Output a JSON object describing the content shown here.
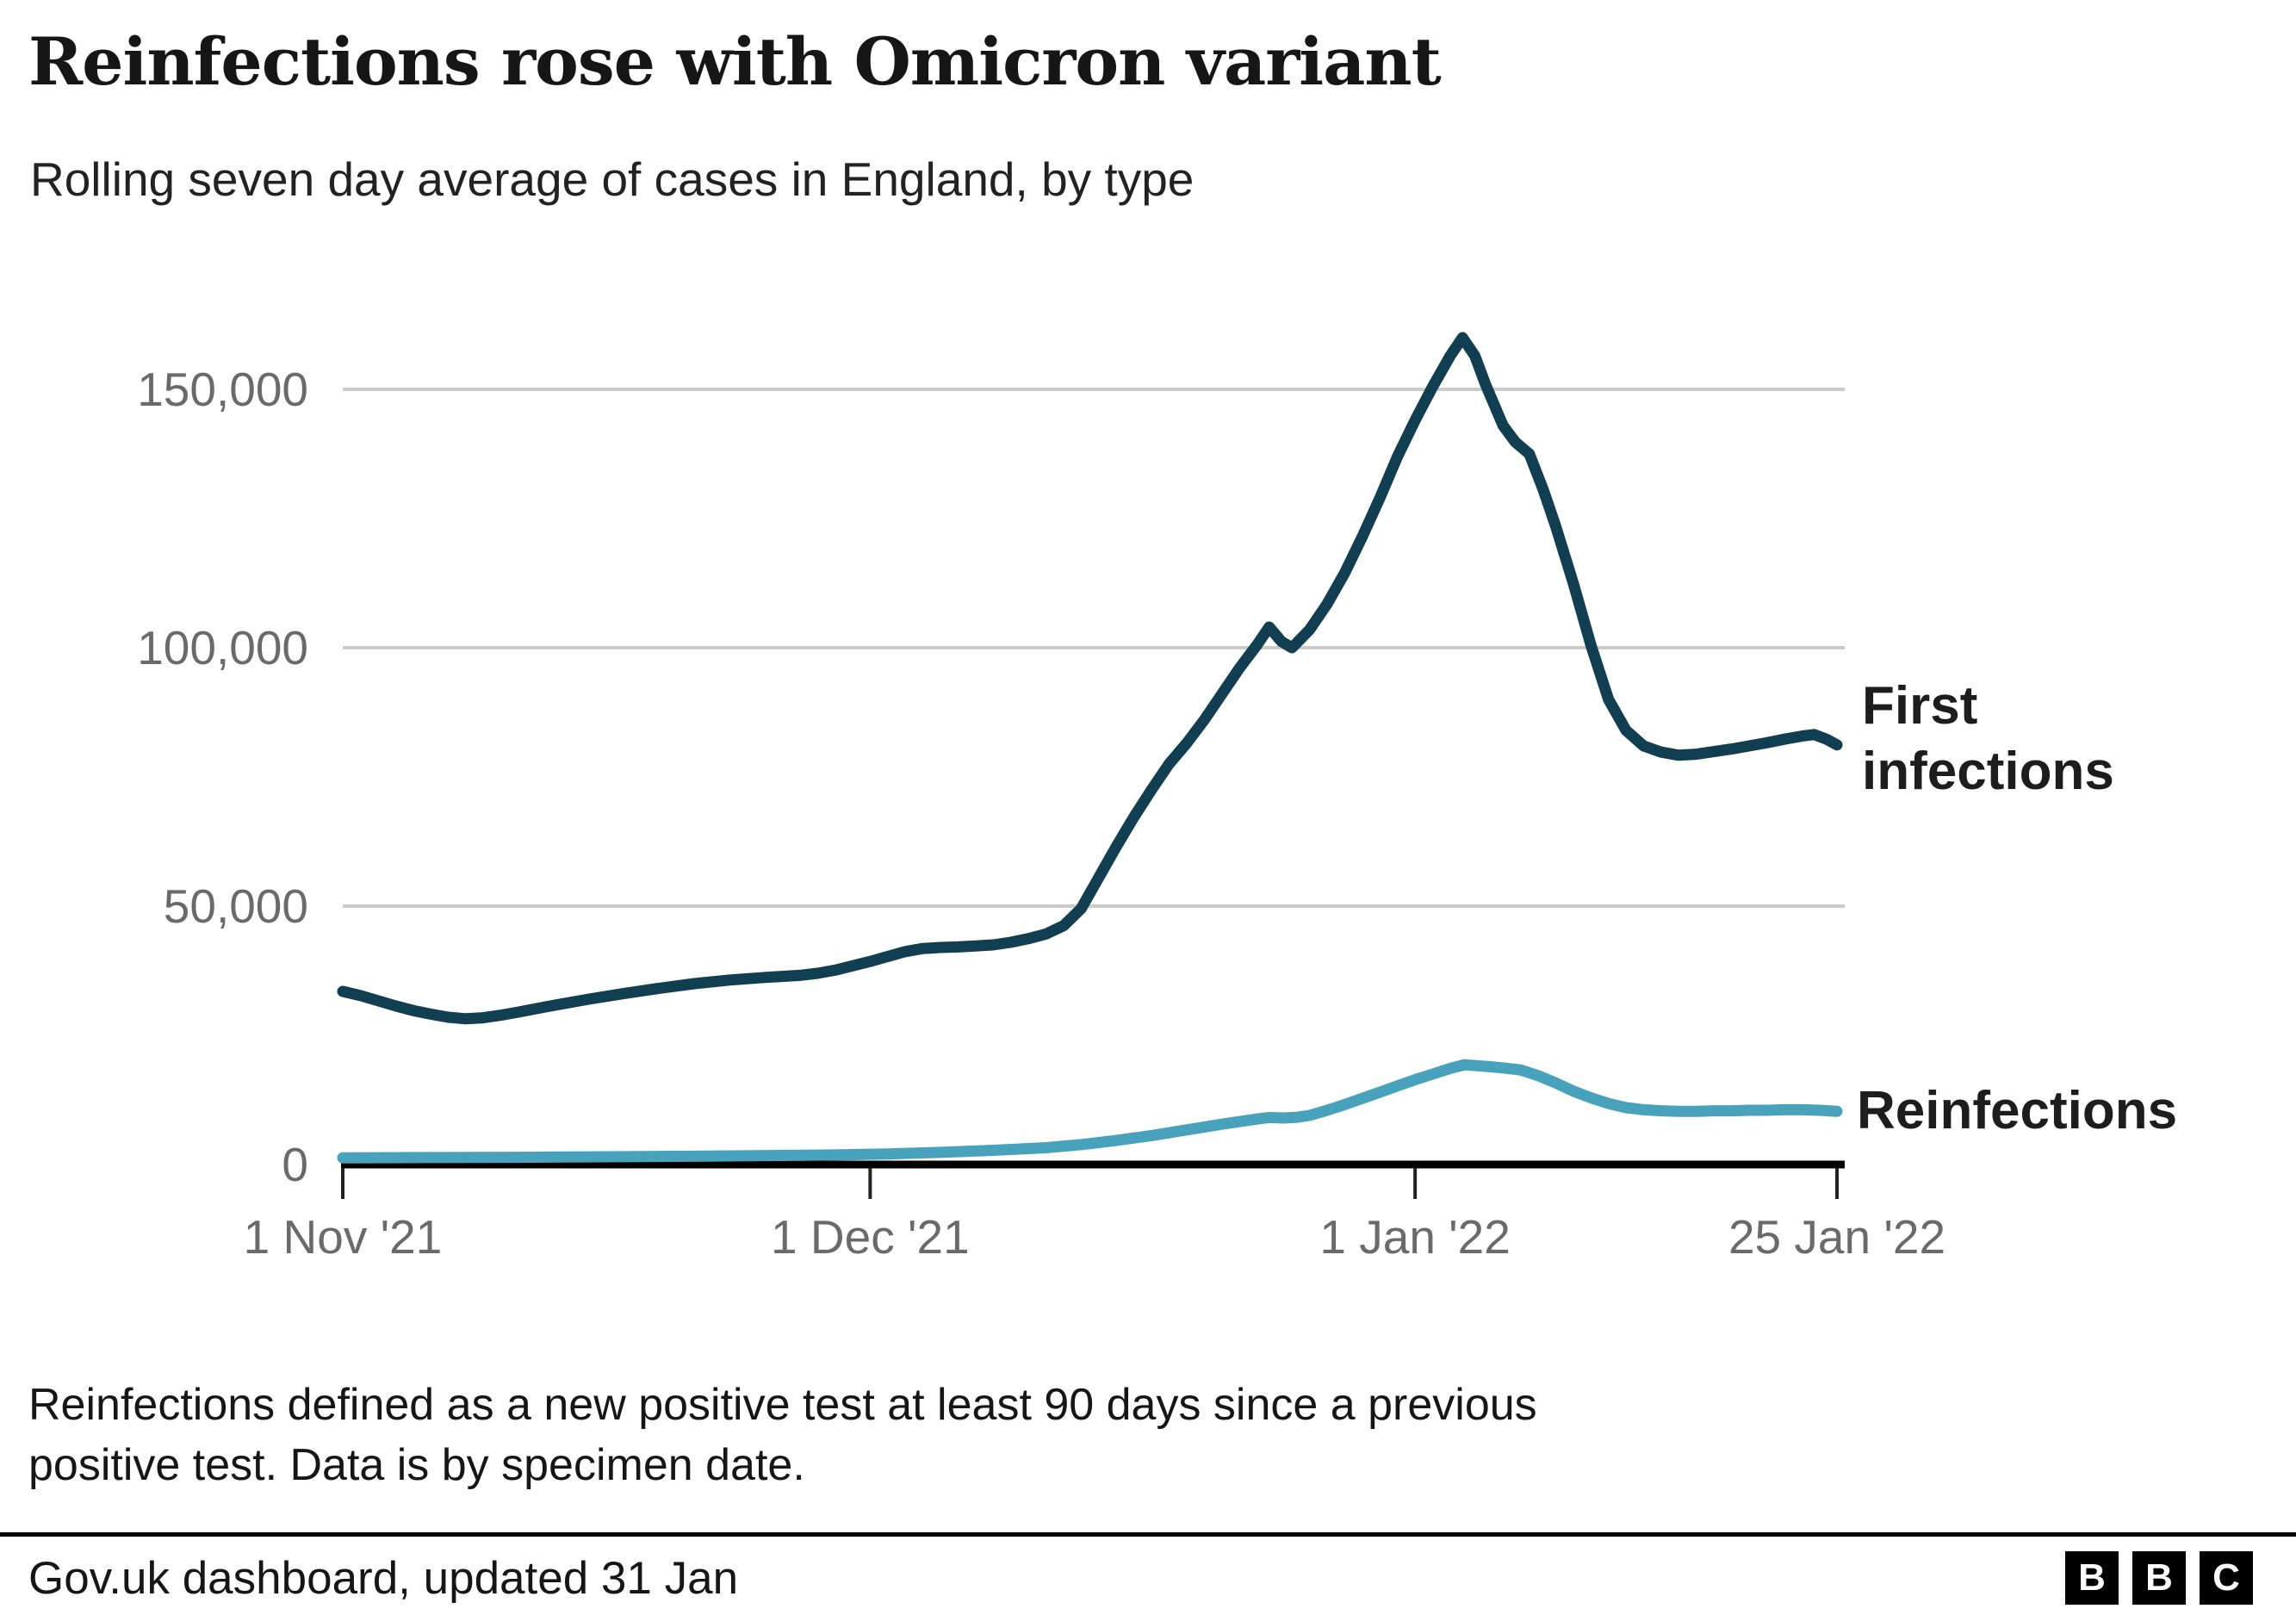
{
  "header": {
    "title": "Reinfections rose with Omicron variant",
    "subtitle": "Rolling seven day average of cases in England, by type"
  },
  "chart_data": {
    "type": "line",
    "title": "Reinfections rose with Omicron variant",
    "subtitle": "Rolling seven day average of cases in England, by type",
    "grid": true,
    "legend_position": "right-edge-labels",
    "x_axis": {
      "kind": "date",
      "start_date": "1 Nov '21",
      "end_date": "25 Jan '22",
      "range_days": [
        0,
        85
      ],
      "ticks": [
        {
          "label": "1 Nov '21",
          "day": 0
        },
        {
          "label": "1 Dec '21",
          "day": 30
        },
        {
          "label": "1 Jan '22",
          "day": 61
        },
        {
          "label": "25 Jan '22",
          "day": 85
        }
      ]
    },
    "y_axis": {
      "range": [
        0,
        160000
      ],
      "ticks": [
        {
          "label": "150,000",
          "value": 150000
        },
        {
          "label": "100,000",
          "value": 100000
        },
        {
          "label": "50,000",
          "value": 50000
        },
        {
          "label": "0",
          "value": 0
        }
      ]
    },
    "series": [
      {
        "name": "Reinfections",
        "label_lines": [
          "Reinfections"
        ],
        "color": "#49a2bb",
        "points": [
          [
            0,
            1300
          ],
          [
            5,
            1350
          ],
          [
            10,
            1400
          ],
          [
            15,
            1500
          ],
          [
            20,
            1600
          ],
          [
            25,
            1750
          ],
          [
            28,
            1850
          ],
          [
            31,
            2050
          ],
          [
            34,
            2350
          ],
          [
            37,
            2750
          ],
          [
            40,
            3250
          ],
          [
            42,
            3850
          ],
          [
            44,
            4650
          ],
          [
            46,
            5600
          ],
          [
            48,
            6700
          ],
          [
            50,
            7800
          ],
          [
            52,
            8800
          ],
          [
            52.7,
            9100
          ],
          [
            53.5,
            9000
          ],
          [
            54.3,
            9150
          ],
          [
            55,
            9500
          ],
          [
            56,
            10500
          ],
          [
            57,
            11600
          ],
          [
            58,
            12800
          ],
          [
            59,
            14000
          ],
          [
            60,
            15200
          ],
          [
            61,
            16400
          ],
          [
            62,
            17500
          ],
          [
            63,
            18600
          ],
          [
            63.8,
            19300
          ],
          [
            65,
            19000
          ],
          [
            66,
            18700
          ],
          [
            67,
            18300
          ],
          [
            68,
            17200
          ],
          [
            69,
            15800
          ],
          [
            70,
            14200
          ],
          [
            71,
            12900
          ],
          [
            72,
            11800
          ],
          [
            73,
            11000
          ],
          [
            74,
            10600
          ],
          [
            75,
            10400
          ],
          [
            76,
            10300
          ],
          [
            77,
            10300
          ],
          [
            78,
            10400
          ],
          [
            79,
            10400
          ],
          [
            80,
            10500
          ],
          [
            81,
            10500
          ],
          [
            82,
            10600
          ],
          [
            83,
            10600
          ],
          [
            84,
            10500
          ],
          [
            85,
            10300
          ]
        ]
      },
      {
        "name": "First infections",
        "label_lines": [
          "First",
          "infections"
        ],
        "color": "#123e52",
        "points": [
          [
            0,
            33500
          ],
          [
            1,
            32700
          ],
          [
            2,
            31700
          ],
          [
            3,
            30700
          ],
          [
            4,
            29800
          ],
          [
            5,
            29100
          ],
          [
            6,
            28500
          ],
          [
            7,
            28200
          ],
          [
            8,
            28400
          ],
          [
            9,
            28900
          ],
          [
            10,
            29500
          ],
          [
            12,
            30800
          ],
          [
            14,
            32000
          ],
          [
            16,
            33100
          ],
          [
            18,
            34100
          ],
          [
            20,
            35000
          ],
          [
            22,
            35700
          ],
          [
            24,
            36200
          ],
          [
            26,
            36600
          ],
          [
            27,
            37000
          ],
          [
            28,
            37600
          ],
          [
            30,
            39300
          ],
          [
            32,
            41200
          ],
          [
            33,
            41800
          ],
          [
            34,
            42000
          ],
          [
            35,
            42100
          ],
          [
            36,
            42300
          ],
          [
            37,
            42500
          ],
          [
            38,
            43000
          ],
          [
            39,
            43700
          ],
          [
            40,
            44600
          ],
          [
            41,
            46200
          ],
          [
            42,
            49500
          ],
          [
            43,
            55500
          ],
          [
            44,
            61500
          ],
          [
            45,
            67200
          ],
          [
            46,
            72500
          ],
          [
            47,
            77500
          ],
          [
            48,
            81500
          ],
          [
            49,
            86000
          ],
          [
            50,
            91000
          ],
          [
            51,
            96000
          ],
          [
            52,
            100500
          ],
          [
            52.7,
            104000
          ],
          [
            53.4,
            101200
          ],
          [
            54,
            100000
          ],
          [
            55,
            103500
          ],
          [
            56,
            108500
          ],
          [
            57,
            114500
          ],
          [
            58,
            121500
          ],
          [
            59,
            129000
          ],
          [
            60,
            137000
          ],
          [
            61,
            144000
          ],
          [
            62,
            150500
          ],
          [
            63,
            156500
          ],
          [
            63.7,
            160000
          ],
          [
            64.4,
            156500
          ],
          [
            65,
            151000
          ],
          [
            66,
            143000
          ],
          [
            66.7,
            139800
          ],
          [
            67.5,
            137500
          ],
          [
            68.3,
            130500
          ],
          [
            69,
            123500
          ],
          [
            70,
            112500
          ],
          [
            71,
            100500
          ],
          [
            72,
            90000
          ],
          [
            73,
            84000
          ],
          [
            74,
            81000
          ],
          [
            75,
            79800
          ],
          [
            76,
            79200
          ],
          [
            77,
            79400
          ],
          [
            78,
            79900
          ],
          [
            79,
            80400
          ],
          [
            80,
            81000
          ],
          [
            81,
            81600
          ],
          [
            82,
            82300
          ],
          [
            83,
            82900
          ],
          [
            83.7,
            83200
          ],
          [
            84.4,
            82300
          ],
          [
            85,
            81200
          ]
        ]
      }
    ]
  },
  "notes": {
    "line1": "Reinfections defined as a new positive test at least 90 days since a previous",
    "line2": "positive test. Data is by specimen date."
  },
  "footer": {
    "source": "Gov.uk dashboard, updated 31 Jan",
    "logo_letters": [
      "B",
      "B",
      "C"
    ]
  },
  "colors": {
    "grid": "#cbcbcb",
    "axis": "#000000",
    "tick": "#222222",
    "tick_label": "#6a6a6a",
    "text": "#161616",
    "first_infections": "#123e52",
    "reinfections": "#49a2bb"
  }
}
